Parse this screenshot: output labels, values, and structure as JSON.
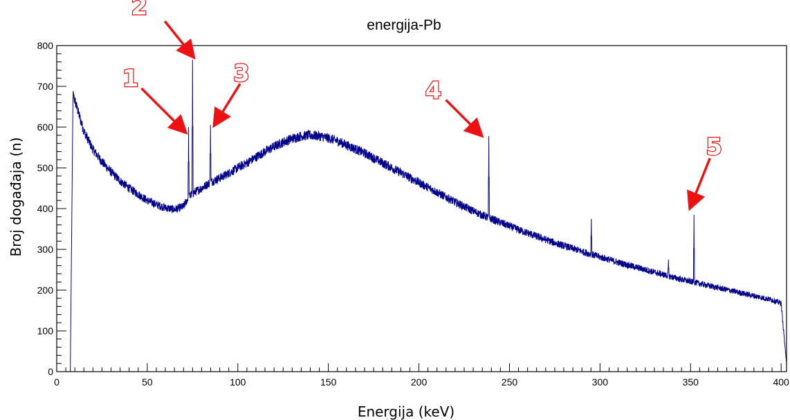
{
  "chart_data": {
    "type": "line",
    "title": "energija-Pb",
    "xlabel": "Energija (keV)",
    "ylabel": "Broj događaja (n)",
    "xlim": [
      0,
      403
    ],
    "ylim": [
      0,
      800
    ],
    "x_ticks": [
      "0",
      "50",
      "100",
      "150",
      "200",
      "250",
      "300",
      "350",
      "400"
    ],
    "y_ticks": [
      "0",
      "100",
      "200",
      "300",
      "400",
      "500",
      "600",
      "700",
      "800"
    ],
    "grid": false,
    "line_color": "#00008b",
    "series": [
      {
        "x": [
          7.5,
          9,
          12,
          15,
          20,
          25,
          30,
          35,
          40,
          45,
          50,
          55,
          60,
          65,
          70,
          73,
          76,
          80,
          85,
          90,
          95,
          100,
          105,
          110,
          115,
          120,
          125,
          130,
          135,
          140,
          145,
          150,
          155,
          160,
          165,
          170,
          175,
          180,
          185,
          190,
          195,
          200,
          205,
          210,
          215,
          220,
          225,
          230,
          235,
          240,
          245,
          250,
          255,
          260,
          265,
          270,
          275,
          280,
          285,
          290,
          295,
          300,
          305,
          310,
          315,
          320,
          325,
          330,
          335,
          340,
          345,
          350,
          355,
          360,
          365,
          370,
          375,
          380,
          385,
          390,
          395,
          400,
          403
        ],
        "values": [
          0,
          680,
          635,
          590,
          545,
          515,
          490,
          468,
          450,
          435,
          420,
          410,
          402,
          398,
          405,
          430,
          440,
          450,
          465,
          475,
          487,
          500,
          512,
          526,
          540,
          552,
          563,
          572,
          578,
          580,
          578,
          573,
          566,
          556,
          546,
          536,
          524,
          512,
          500,
          488,
          476,
          464,
          452,
          440,
          428,
          416,
          405,
          394,
          384,
          375,
          366,
          357,
          348,
          340,
          332,
          324,
          316,
          309,
          302,
          295,
          288,
          281,
          275,
          268,
          262,
          256,
          250,
          244,
          238,
          232,
          226,
          221,
          216,
          211,
          206,
          201,
          196,
          191,
          186,
          181,
          176,
          168,
          20
        ],
        "peaks": [
          {
            "x": 72.8,
            "y": 600
          },
          {
            "x": 75.0,
            "y": 765
          },
          {
            "x": 84.9,
            "y": 605
          },
          {
            "x": 238.6,
            "y": 578
          },
          {
            "x": 295.2,
            "y": 375
          },
          {
            "x": 337.8,
            "y": 275
          },
          {
            "x": 351.9,
            "y": 385
          }
        ]
      }
    ],
    "annotations": [
      {
        "text": "1",
        "arrow_to": [
          70.5,
          590
        ]
      },
      {
        "text": "2",
        "arrow_to": [
          75.0,
          775
        ]
      },
      {
        "text": "3",
        "arrow_to": [
          87.5,
          608
        ]
      },
      {
        "text": "4",
        "arrow_to": [
          234,
          582
        ]
      },
      {
        "text": "5",
        "arrow_to": [
          350,
          405
        ]
      }
    ]
  }
}
